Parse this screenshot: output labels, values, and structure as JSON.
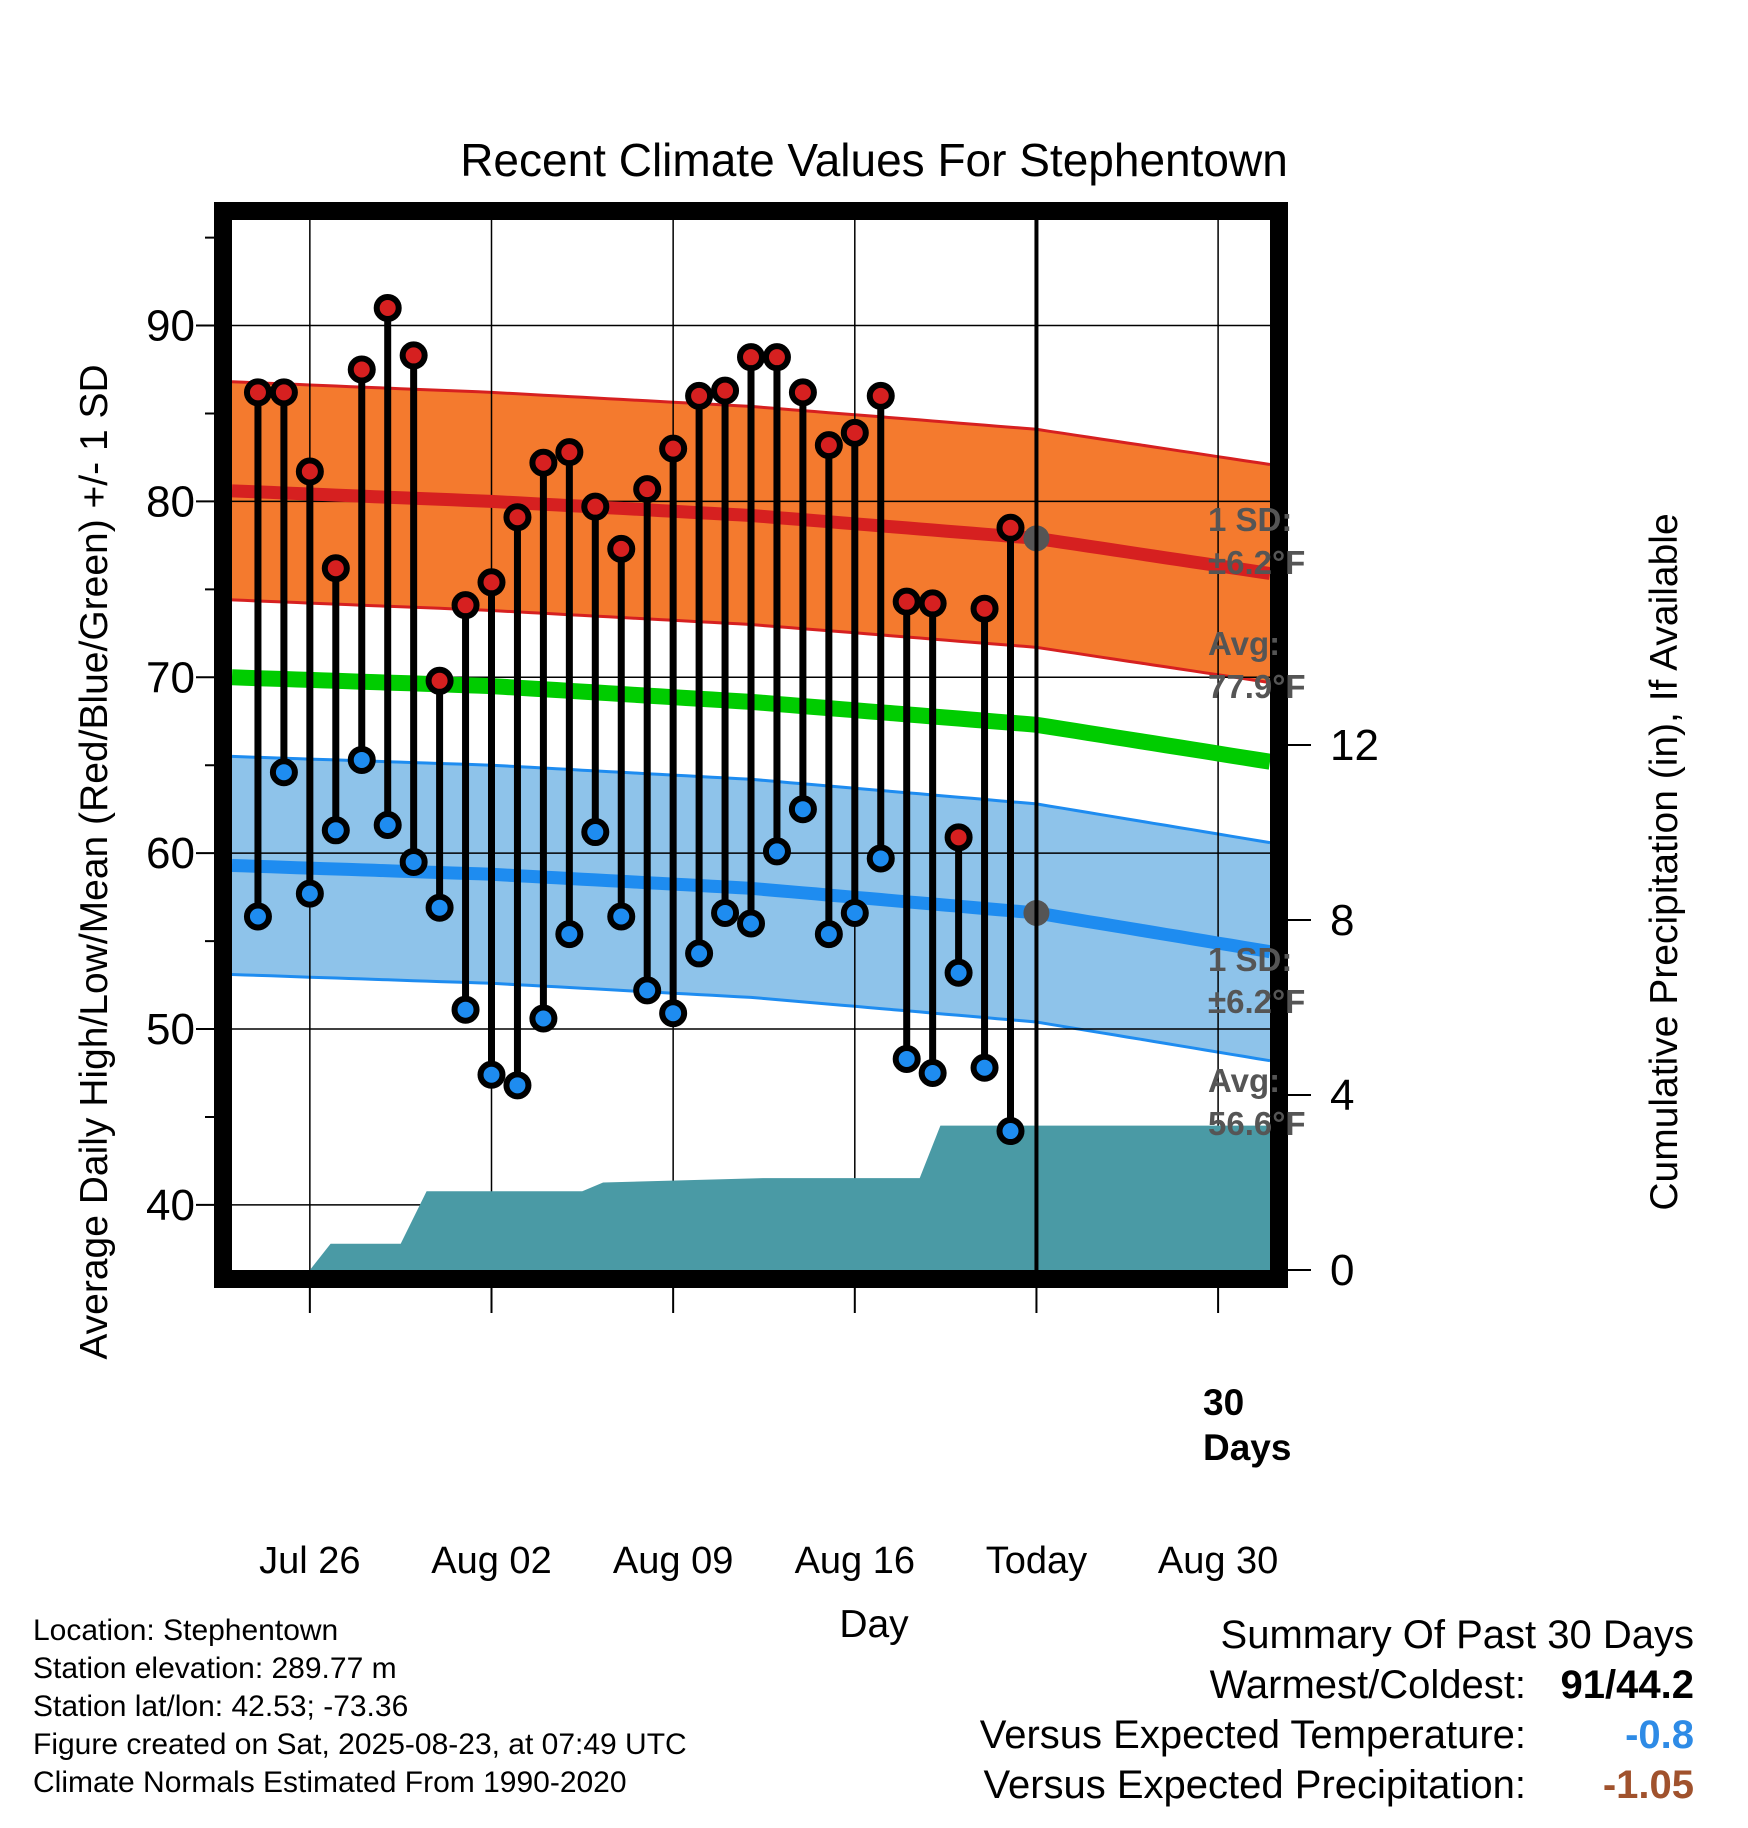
{
  "title": "Recent Climate Values For Stephentown",
  "y_label_left": "Average Daily High/Low/Mean (Red/Blue/Green) +/- 1 SD",
  "y_label_right": "Cumulative Precipitation (in), If Available",
  "x_label": "Day",
  "annotations": {
    "high_sd_line1": "1 SD:",
    "high_sd_line2": "±6.2°F",
    "high_avg_line1": "Avg:",
    "high_avg_line2": "77.9°F",
    "low_sd_line1": "1 SD:",
    "low_sd_line2": "±6.2°F",
    "low_avg_line1": "Avg:",
    "low_avg_line2": "56.6°F",
    "days_line1": "30",
    "days_line2": "Days"
  },
  "info": {
    "location": "Location: Stephentown",
    "elevation": "Station elevation: 289.77 m",
    "latlon": "Station lat/lon: 42.53; -73.36",
    "created": "Figure created on Sat, 2025-08-23, at 07:49 UTC",
    "normals": "Climate Normals Estimated From 1990-2020"
  },
  "summary": {
    "heading": "Summary Of Past 30 Days",
    "warmest_label": "Warmest/Coldest:",
    "warmest_value": "91/44.2",
    "temp_label": "Versus Expected Temperature:",
    "temp_value": "-0.8",
    "temp_color": "#2e8be6",
    "precip_label": "Versus Expected Precipitation:",
    "precip_value": "-1.05",
    "precip_color": "#a0522d"
  },
  "chart_data": {
    "type": "line",
    "x_axis": {
      "ticks": [
        {
          "day": 3,
          "label": "Jul 26"
        },
        {
          "day": 10,
          "label": "Aug 02"
        },
        {
          "day": 17,
          "label": "Aug 09"
        },
        {
          "day": 24,
          "label": "Aug 16"
        },
        {
          "day": 31,
          "label": "Today"
        },
        {
          "day": 38,
          "label": "Aug 30"
        }
      ],
      "range": [
        0,
        40
      ]
    },
    "y_left": {
      "ticks": [
        40,
        50,
        60,
        70,
        80,
        90
      ],
      "range": [
        36.3,
        96.0
      ]
    },
    "y_right": {
      "ticks": [
        0,
        4,
        8,
        12
      ],
      "range": [
        0,
        24
      ]
    },
    "today_day": 31,
    "highs": [
      86.2,
      86.2,
      81.7,
      76.2,
      87.5,
      91.0,
      88.3,
      69.8,
      74.1,
      75.4,
      79.1,
      82.2,
      82.8,
      79.7,
      77.3,
      80.7,
      83.0,
      86.0,
      86.3,
      88.2,
      88.2,
      86.2,
      83.2,
      83.9,
      86.0,
      74.3,
      74.2,
      60.9,
      73.9,
      78.5
    ],
    "lows": [
      56.4,
      64.6,
      57.7,
      61.3,
      65.3,
      61.6,
      59.5,
      56.9,
      51.1,
      47.4,
      46.8,
      50.6,
      55.4,
      61.2,
      56.4,
      52.2,
      50.9,
      54.3,
      56.6,
      56.0,
      60.1,
      62.5,
      55.4,
      56.6,
      59.7,
      48.3,
      47.5,
      53.2,
      47.8,
      44.2
    ],
    "normal_high": {
      "days": [
        0,
        10,
        20,
        31,
        40
      ],
      "values": [
        80.6,
        80.0,
        79.2,
        77.9,
        75.9
      ]
    },
    "normal_mean": {
      "days": [
        0,
        10,
        20,
        31,
        40
      ],
      "values": [
        70.0,
        69.5,
        68.6,
        67.3,
        65.2
      ]
    },
    "normal_low": {
      "days": [
        0,
        10,
        20,
        31,
        40
      ],
      "values": [
        59.3,
        58.8,
        58.0,
        56.6,
        54.4
      ]
    },
    "sd": 6.2,
    "precip": {
      "days": [
        3,
        3.8,
        6.5,
        7.5,
        13.5,
        14.3,
        20.5,
        26.5,
        27.3,
        40
      ],
      "values": [
        0,
        0.6,
        0.6,
        1.8,
        1.8,
        2.0,
        2.1,
        2.1,
        3.3,
        3.3
      ]
    }
  }
}
